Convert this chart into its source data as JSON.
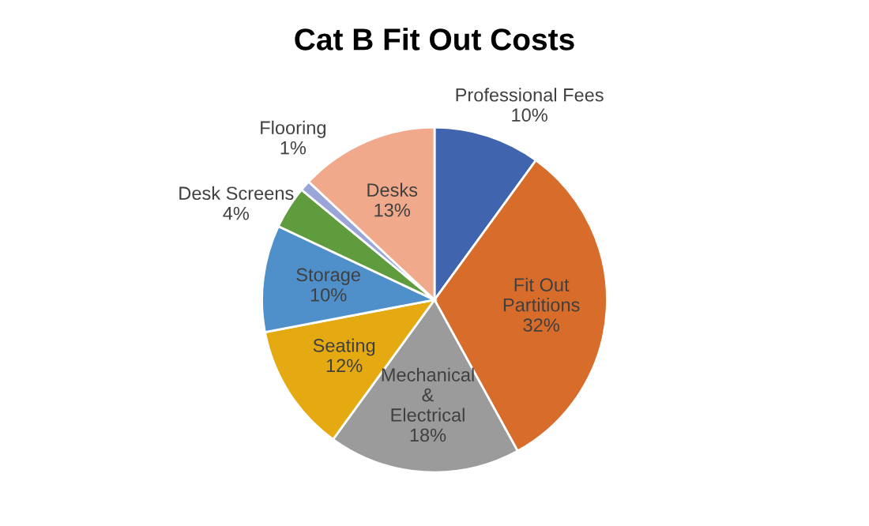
{
  "chart_data": {
    "type": "pie",
    "title": "Cat B Fit Out Costs",
    "categories": [
      "Professional Fees",
      "Fit Out Partitions",
      "Mechanical & Electrical",
      "Seating",
      "Storage",
      "Desk Screens",
      "Flooring",
      "Desks"
    ],
    "values": [
      10,
      32,
      18,
      12,
      10,
      4,
      1,
      13
    ],
    "value_labels": [
      "10%",
      "32%",
      "18%",
      "12%",
      "10%",
      "4%",
      "1%",
      "13%"
    ],
    "colors": [
      "#4064ae",
      "#d86c2a",
      "#9b9b9b",
      "#e5aa12",
      "#4f8fca",
      "#5e9c3e",
      "#9aa6d8",
      "#f1a98c"
    ]
  }
}
